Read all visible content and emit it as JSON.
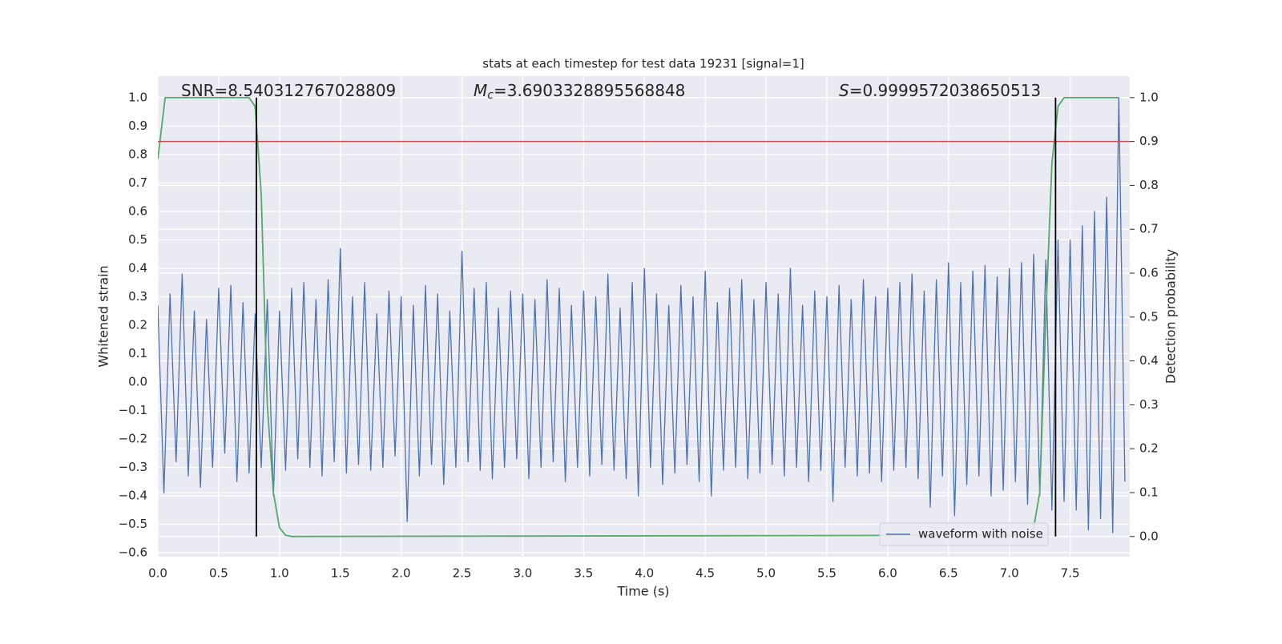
{
  "chart_data": {
    "type": "line",
    "title": "stats at each timestep for test data 19231 [signal=1]",
    "xlabel": "Time (s)",
    "ylabel": "Whitened strain",
    "y2label": "Detection probability",
    "xlim": [
      0,
      7.99
    ],
    "ylim": [
      -0.614,
      1.076
    ],
    "y2lim": [
      -0.046,
      1.049
    ],
    "grid": true,
    "legend": "lower right",
    "xticks": [
      {
        "value": 0,
        "label": "0.0"
      },
      0.5,
      {
        "value": 1,
        "label": "1.0"
      },
      1.5,
      {
        "value": 2,
        "label": "2.0"
      },
      2.5,
      {
        "value": 3,
        "label": "3.0"
      },
      3.5,
      {
        "value": 4,
        "label": "4.0"
      },
      4.5,
      {
        "value": 5,
        "label": "5.0"
      },
      5.5,
      {
        "value": 6,
        "label": "6.0"
      },
      6.5,
      {
        "value": 7,
        "label": "7.0"
      },
      7.5
    ],
    "yticks": [
      {
        "value": -0.6,
        "label": "−0.6"
      },
      {
        "value": -0.5,
        "label": "−0.5"
      },
      {
        "value": -0.4,
        "label": "−0.4"
      },
      {
        "value": -0.3,
        "label": "−0.3"
      },
      {
        "value": -0.2,
        "label": "−0.2"
      },
      {
        "value": -0.1,
        "label": "−0.1"
      },
      {
        "value": 0,
        "label": "0.0"
      },
      0.1,
      0.2,
      0.3,
      0.4,
      0.5,
      0.6,
      0.7,
      0.8,
      0.9,
      {
        "value": 1,
        "label": "1.0"
      }
    ],
    "y2ticks": [
      {
        "value": 0,
        "label": "0.0"
      },
      0.1,
      0.2,
      0.3,
      0.4,
      0.5,
      0.6,
      0.7,
      0.8,
      0.9,
      {
        "value": 1,
        "label": "1.0"
      }
    ],
    "annotations": [
      {
        "text": "SNR=8.540312767028809"
      },
      {
        "symbol": "M",
        "sub": "c",
        "text": "=3.6903328895568848"
      },
      {
        "symbol": "S",
        "text": "=0.9999572038650513"
      }
    ],
    "series": [
      {
        "name": "waveform with noise",
        "color": "#4c72b0",
        "x": [
          0,
          0.05,
          0.1,
          0.15,
          0.2,
          0.25,
          0.3,
          0.35,
          0.4,
          0.45,
          0.5,
          0.55,
          0.6,
          0.65,
          0.7,
          0.75,
          0.8,
          0.85,
          0.9,
          0.95,
          1,
          1.05,
          1.1,
          1.15,
          1.2,
          1.25,
          1.3,
          1.35,
          1.4,
          1.45,
          1.5,
          1.55,
          1.6,
          1.65,
          1.7,
          1.75,
          1.8,
          1.85,
          1.9,
          1.95,
          2,
          2.05,
          2.1,
          2.15,
          2.2,
          2.25,
          2.3,
          2.35,
          2.4,
          2.45,
          2.5,
          2.55,
          2.6,
          2.65,
          2.7,
          2.75,
          2.8,
          2.85,
          2.9,
          2.95,
          3,
          3.05,
          3.1,
          3.15,
          3.2,
          3.25,
          3.3,
          3.35,
          3.4,
          3.45,
          3.5,
          3.55,
          3.6,
          3.65,
          3.7,
          3.75,
          3.8,
          3.85,
          3.9,
          3.95,
          4,
          4.05,
          4.1,
          4.15,
          4.2,
          4.25,
          4.3,
          4.35,
          4.4,
          4.45,
          4.5,
          4.55,
          4.6,
          4.65,
          4.7,
          4.75,
          4.8,
          4.85,
          4.9,
          4.95,
          5,
          5.05,
          5.1,
          5.15,
          5.2,
          5.25,
          5.3,
          5.35,
          5.4,
          5.45,
          5.5,
          5.55,
          5.6,
          5.65,
          5.7,
          5.75,
          5.8,
          5.85,
          5.9,
          5.95,
          6,
          6.05,
          6.1,
          6.15,
          6.2,
          6.25,
          6.3,
          6.35,
          6.4,
          6.45,
          6.5,
          6.55,
          6.6,
          6.65,
          6.7,
          6.75,
          6.8,
          6.85,
          6.9,
          6.95,
          7,
          7.05,
          7.1,
          7.15,
          7.2,
          7.25,
          7.3,
          7.35,
          7.4,
          7.45,
          7.5,
          7.55,
          7.6,
          7.65,
          7.7,
          7.75,
          7.8,
          7.85,
          7.9,
          7.95
        ],
        "values": [
          0.27,
          -0.39,
          0.31,
          -0.28,
          0.38,
          -0.33,
          0.25,
          -0.37,
          0.22,
          -0.3,
          0.33,
          -0.25,
          0.34,
          -0.35,
          0.28,
          -0.32,
          0.24,
          -0.3,
          0.29,
          -0.4,
          0.25,
          -0.31,
          0.33,
          -0.27,
          0.35,
          -0.3,
          0.29,
          -0.33,
          0.36,
          -0.28,
          0.47,
          -0.32,
          0.3,
          -0.29,
          0.35,
          -0.31,
          0.24,
          -0.3,
          0.32,
          -0.26,
          0.3,
          -0.49,
          0.27,
          -0.33,
          0.34,
          -0.29,
          0.31,
          -0.36,
          0.25,
          -0.3,
          0.46,
          -0.28,
          0.33,
          -0.31,
          0.35,
          -0.34,
          0.26,
          -0.3,
          0.32,
          -0.27,
          0.31,
          -0.34,
          0.29,
          -0.3,
          0.36,
          -0.28,
          0.33,
          -0.35,
          0.27,
          -0.3,
          0.32,
          -0.33,
          0.3,
          -0.29,
          0.38,
          -0.31,
          0.26,
          -0.34,
          0.35,
          -0.4,
          0.4,
          -0.3,
          0.31,
          -0.36,
          0.27,
          -0.32,
          0.34,
          -0.29,
          0.3,
          -0.35,
          0.39,
          -0.4,
          0.28,
          -0.31,
          0.33,
          -0.3,
          0.36,
          -0.34,
          0.29,
          -0.32,
          0.35,
          -0.29,
          0.31,
          -0.33,
          0.4,
          -0.3,
          0.27,
          -0.35,
          0.32,
          -0.31,
          0.3,
          -0.42,
          0.34,
          -0.3,
          0.29,
          -0.33,
          0.36,
          -0.32,
          0.3,
          -0.35,
          0.33,
          -0.31,
          0.35,
          -0.3,
          0.38,
          -0.34,
          0.32,
          -0.44,
          0.36,
          -0.33,
          0.42,
          -0.47,
          0.35,
          -0.36,
          0.39,
          -0.33,
          0.41,
          -0.4,
          0.37,
          -0.38,
          0.4,
          -0.35,
          0.42,
          -0.43,
          0.45,
          -0.4,
          0.43,
          -0.45,
          0.5,
          -0.42,
          0.5,
          -0.45,
          0.55,
          -0.52,
          0.6,
          -0.48,
          0.65,
          -0.53,
          1.0,
          -0.35
        ]
      },
      {
        "color": "#55a868",
        "axis": "y2",
        "x": [
          0,
          0.06,
          0.75,
          0.8,
          0.85,
          0.9,
          0.95,
          1.0,
          1.05,
          1.1,
          7.0,
          7.15,
          7.2,
          7.25,
          7.3,
          7.35,
          7.4,
          7.45,
          7.9
        ],
        "values": [
          0.86,
          1.0,
          1.0,
          0.98,
          0.78,
          0.3,
          0.1,
          0.02,
          0.003,
          0,
          0.003,
          0.005,
          0.02,
          0.1,
          0.5,
          0.85,
          0.98,
          1.0,
          1.0
        ]
      }
    ],
    "hlines": [
      {
        "y": 0.9,
        "axis": "y2",
        "color": "#c44e52"
      }
    ],
    "vlines": [
      {
        "x": 0.81,
        "ymin": 0,
        "ymax": 1,
        "axis": "y2",
        "color": "#000000"
      },
      {
        "x": 7.38,
        "ymin": 0,
        "ymax": 1,
        "axis": "y2",
        "color": "#000000"
      }
    ]
  }
}
